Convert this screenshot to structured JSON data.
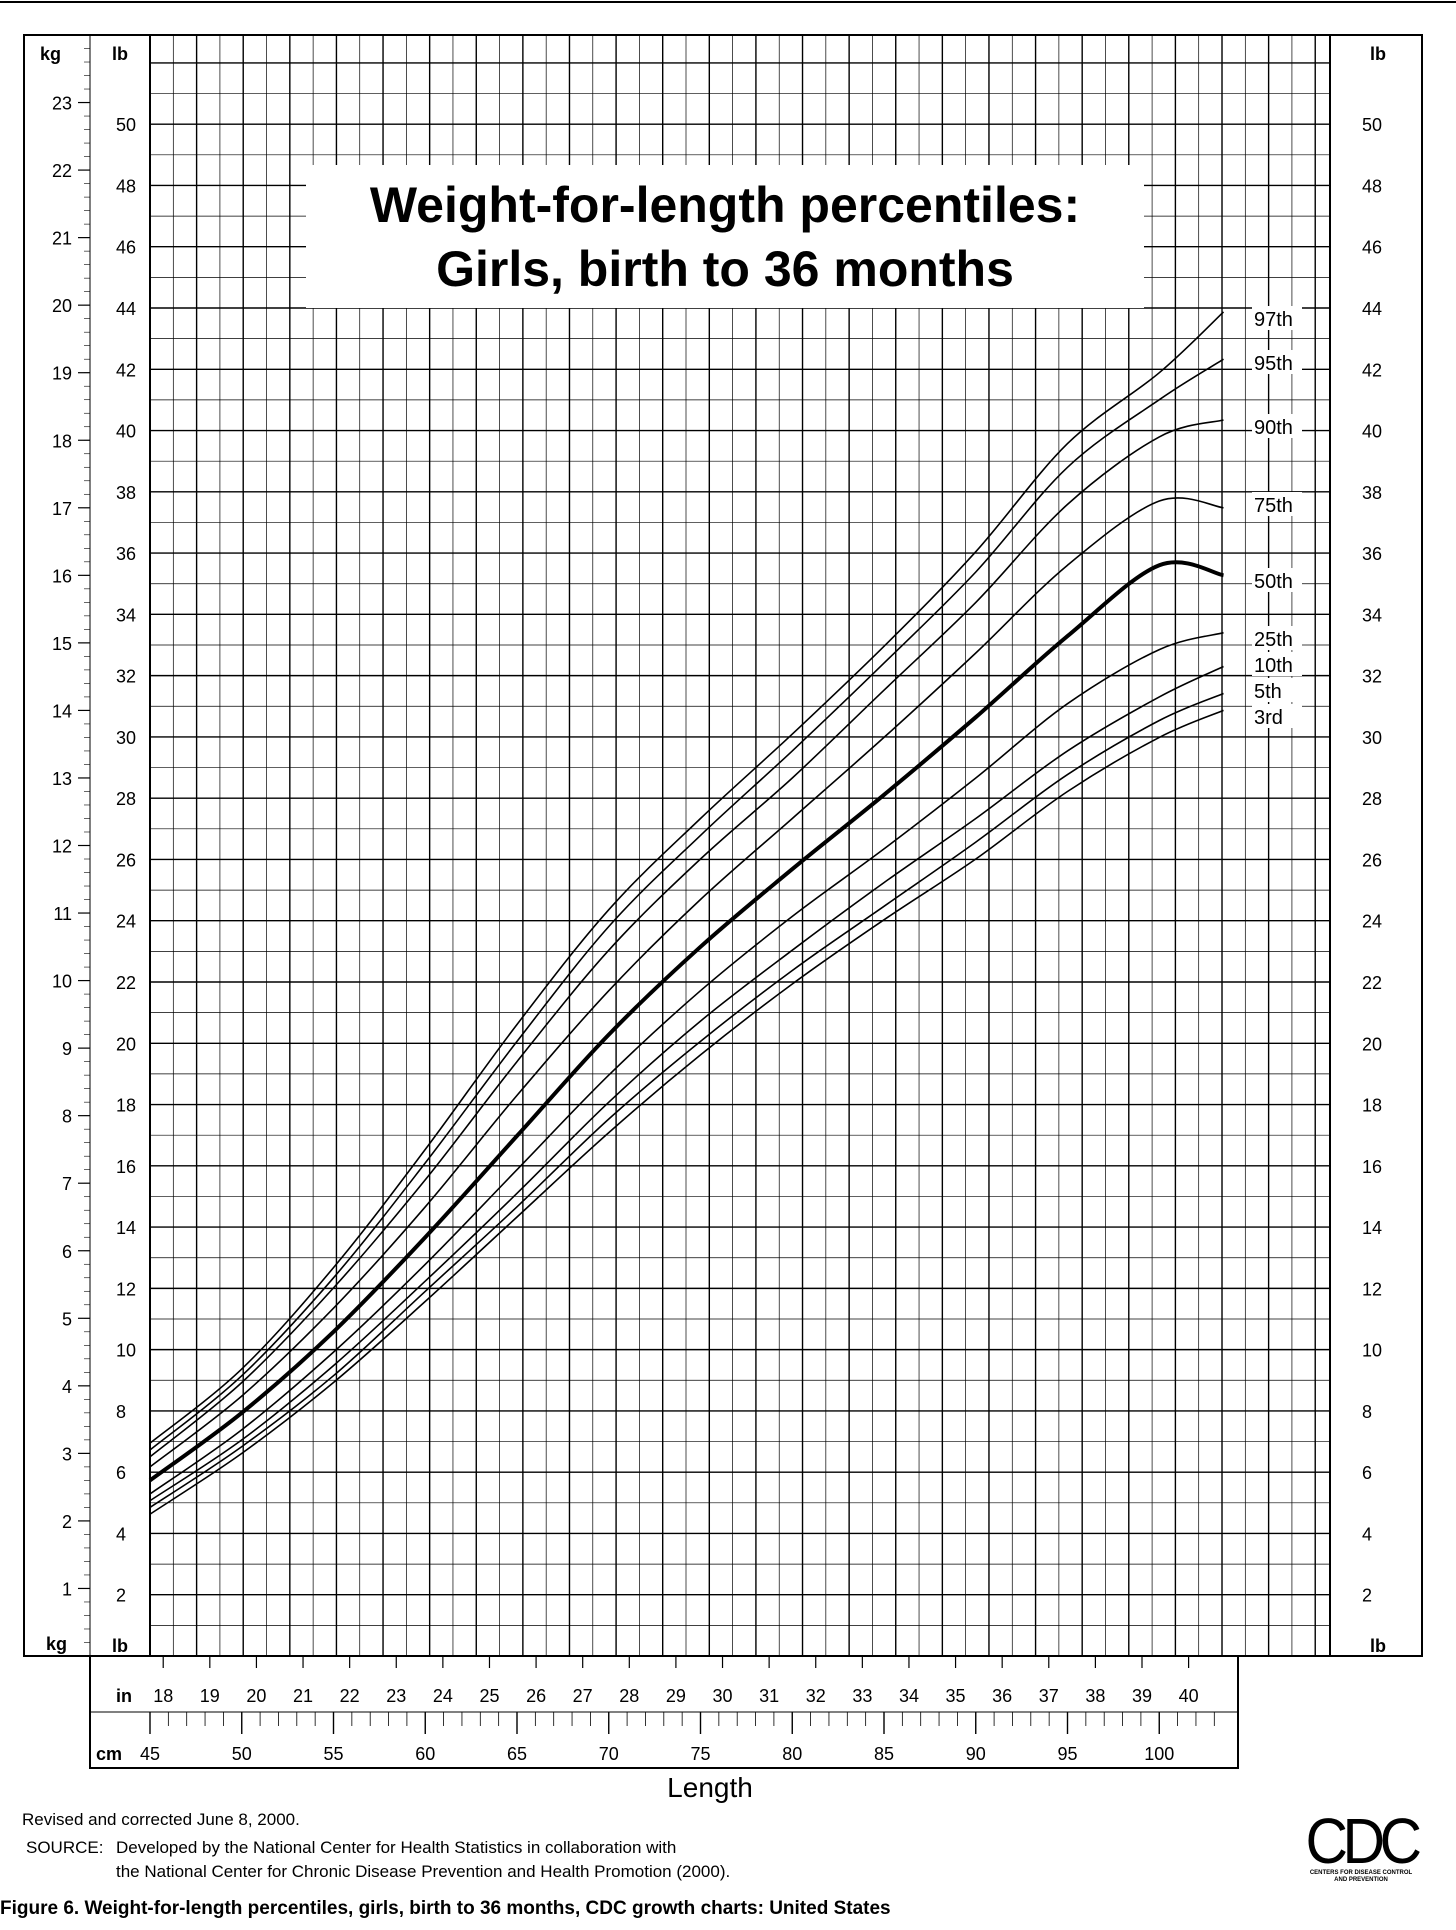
{
  "chart_data": {
    "type": "line",
    "title": "Weight-for-length percentiles:",
    "subtitle": "Girls, birth to 36 months",
    "xlabel": "Length",
    "x_units": {
      "cm": "cm",
      "in": "in"
    },
    "y_units": {
      "kg": "kg",
      "lb": "lb"
    },
    "xlim_cm": [
      45,
      103.5
    ],
    "ylim_kg": [
      0,
      24
    ],
    "grid": true,
    "cm_ticks": [
      "45",
      "50",
      "55",
      "60",
      "65",
      "70",
      "75",
      "80",
      "85",
      "90",
      "95",
      "100"
    ],
    "in_ticks": [
      "18",
      "19",
      "20",
      "21",
      "22",
      "23",
      "24",
      "25",
      "26",
      "27",
      "28",
      "29",
      "30",
      "31",
      "32",
      "33",
      "34",
      "35",
      "36",
      "37",
      "38",
      "39",
      "40"
    ],
    "kg_ticks": [
      "1",
      "2",
      "3",
      "4",
      "5",
      "6",
      "7",
      "8",
      "9",
      "10",
      "11",
      "12",
      "13",
      "14",
      "15",
      "16",
      "17",
      "18",
      "19",
      "20",
      "21",
      "22",
      "23"
    ],
    "lb_ticks": [
      "2",
      "4",
      "6",
      "8",
      "10",
      "12",
      "14",
      "16",
      "18",
      "20",
      "22",
      "24",
      "26",
      "28",
      "30",
      "32",
      "34",
      "36",
      "38",
      "40",
      "42",
      "44",
      "46",
      "48",
      "50"
    ],
    "x": [
      45,
      50,
      55,
      60,
      65,
      70,
      75,
      80,
      85,
      90,
      95,
      100,
      103.5
    ],
    "series": [
      {
        "name": "97th",
        "values": [
          3.15,
          4.25,
          5.75,
          7.5,
          9.35,
          11.05,
          12.4,
          13.65,
          14.95,
          16.35,
          17.95,
          19.0,
          19.9
        ],
        "bold": false
      },
      {
        "name": "95th",
        "values": [
          3.05,
          4.15,
          5.6,
          7.3,
          9.1,
          10.8,
          12.15,
          13.4,
          14.7,
          16.05,
          17.6,
          18.6,
          19.2
        ],
        "bold": false
      },
      {
        "name": "90th",
        "values": [
          2.95,
          4.05,
          5.45,
          7.05,
          8.8,
          10.45,
          11.8,
          13.0,
          14.3,
          15.6,
          17.05,
          18.05,
          18.3
        ],
        "bold": false
      },
      {
        "name": "75th",
        "values": [
          2.8,
          3.85,
          5.15,
          6.65,
          8.3,
          9.85,
          11.2,
          12.4,
          13.6,
          14.85,
          16.15,
          17.1,
          17.0
        ],
        "bold": false
      },
      {
        "name": "50th",
        "values": [
          2.6,
          3.6,
          4.8,
          6.2,
          7.7,
          9.2,
          10.5,
          11.65,
          12.75,
          13.9,
          15.1,
          16.15,
          16.0
        ],
        "bold": true
      },
      {
        "name": "25th",
        "values": [
          2.4,
          3.35,
          4.5,
          5.8,
          7.2,
          8.6,
          9.85,
          10.95,
          11.95,
          13.0,
          14.1,
          14.9,
          15.15
        ],
        "bold": false
      },
      {
        "name": "10th",
        "values": [
          2.3,
          3.2,
          4.3,
          5.55,
          6.85,
          8.2,
          9.4,
          10.45,
          11.45,
          12.4,
          13.4,
          14.2,
          14.65
        ],
        "bold": false
      },
      {
        "name": "5th",
        "values": [
          2.2,
          3.1,
          4.15,
          5.4,
          6.65,
          7.95,
          9.1,
          10.15,
          11.1,
          12.05,
          13.05,
          13.85,
          14.25
        ],
        "bold": false
      },
      {
        "name": "3rd",
        "values": [
          2.1,
          3.0,
          4.05,
          5.25,
          6.5,
          7.75,
          8.9,
          9.95,
          10.9,
          11.8,
          12.8,
          13.6,
          14.0
        ],
        "bold": false
      }
    ]
  },
  "footer": {
    "revised": "Revised and corrected June 8, 2000.",
    "source_label": "SOURCE:",
    "source_line1": "Developed by the National Center for Health Statistics in collaboration with",
    "source_line2": "the National Center for Chronic Disease Prevention and Health Promotion (2000).",
    "caption": "Figure 6. Weight-for-length percentiles, girls, birth to 36 months, CDC growth charts: United States"
  },
  "logo": {
    "text": "CDC",
    "sub1": "CENTERS FOR DISEASE CONTROL",
    "sub2": "AND PREVENTION"
  }
}
